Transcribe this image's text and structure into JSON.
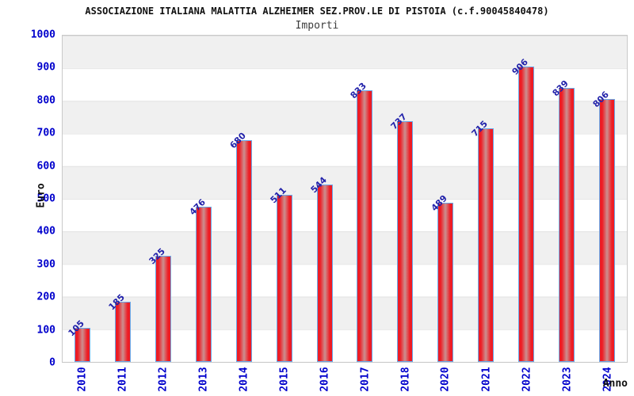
{
  "header": {
    "title": "ASSOCIAZIONE ITALIANA MALATTIA ALZHEIMER SEZ.PROV.LE DI PISTOIA (c.f.90045840478)",
    "subtitle": "Importi"
  },
  "chart_data": {
    "type": "bar",
    "title": "ASSOCIAZIONE ITALIANA MALATTIA ALZHEIMER SEZ.PROV.LE DI PISTOIA (c.f.90045840478)",
    "subtitle": "Importi",
    "xlabel": "Anno",
    "ylabel": "Euro",
    "categories": [
      "2010",
      "2011",
      "2012",
      "2013",
      "2014",
      "2015",
      "2016",
      "2017",
      "2018",
      "2020",
      "2021",
      "2022",
      "2023",
      "2024"
    ],
    "values": [
      105,
      185,
      325,
      476,
      680,
      511,
      544,
      833,
      737,
      489,
      715,
      906,
      839,
      806
    ],
    "ylim": [
      0,
      1000
    ],
    "y_ticks": [
      0,
      100,
      200,
      300,
      400,
      500,
      600,
      700,
      800,
      900,
      1000
    ],
    "grid": true,
    "banded_background": true,
    "legend": "none",
    "colors": {
      "bar_fill": "#ee1c24",
      "bar_center_sheen": "#cb9090",
      "bar_border": "#6aa9e9",
      "axis_tick_text": "#0000cc",
      "value_label_text": "#2222aa",
      "band_gray": "#f0f0f0",
      "gridline": "#e2e2e2",
      "plot_border": "#c9c9c9",
      "title_text": "#111111",
      "subtitle_text": "#3c3c3c"
    }
  }
}
